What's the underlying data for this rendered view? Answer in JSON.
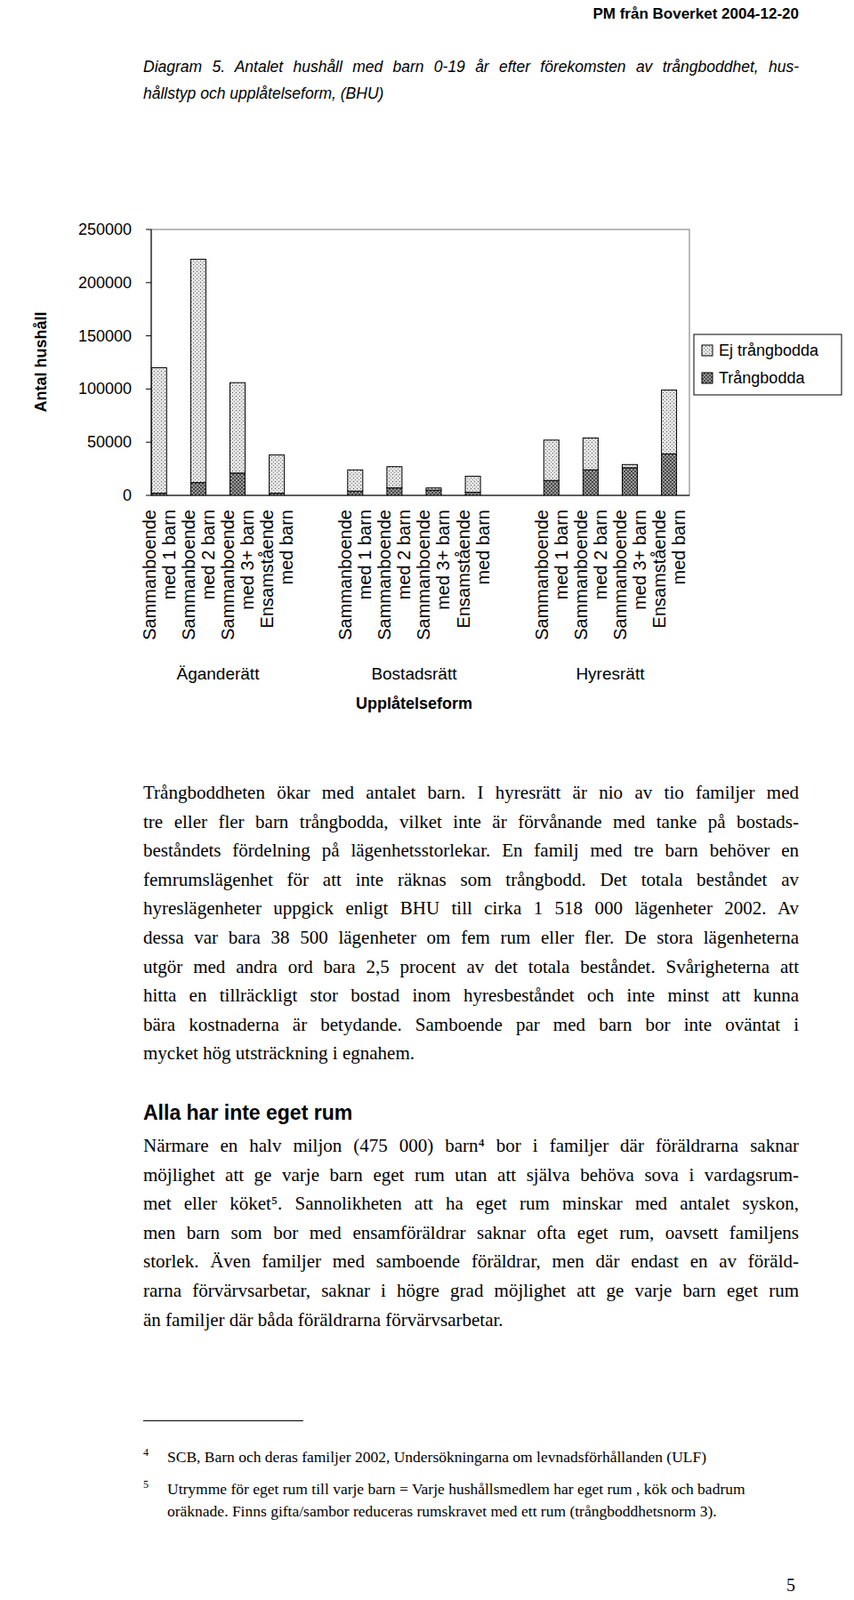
{
  "header": {
    "text": "PM från Boverket 2004-12-20"
  },
  "chart_data": {
    "type": "bar",
    "stacked": true,
    "title": "Diagram 5. Antalet hushåll med barn 0-19 år efter förekomsten av trångboddhet, hus-\nhållstyp och upplåtelseform, (BHU)",
    "x_label": "Upplåtelseform",
    "y_label": "Antal hushåll",
    "categories": [
      "Sammanboende\nmed 1 barn",
      "Sammanboende\nmed 2 barn",
      "Sammanboende\nmed 3+ barn",
      "Ensamstående\nmed barn",
      "Sammanboende\nmed 1 barn",
      "Sammanboende\nmed 2 barn",
      "Sammanboende\nmed 3+ barn",
      "Ensamstående\nmed barn",
      "Sammanboende\nmed 1 barn",
      "Sammanboende\nmed 2 barn",
      "Sammanboende\nmed 3+ barn",
      "Ensamstående\nmed barn"
    ],
    "groups": [
      {
        "label": "Äganderätt",
        "size": 4
      },
      {
        "label": "Bostadsrätt",
        "size": 4
      },
      {
        "label": "Hyresrätt",
        "size": 4
      }
    ],
    "series": [
      {
        "name": "Trångbodda",
        "color": "#9c9c9c",
        "values": [
          2000,
          12000,
          21000,
          2000,
          4000,
          7000,
          5000,
          3000,
          14000,
          24000,
          26000,
          39000
        ]
      },
      {
        "name": "Ej trångbodda",
        "color": "#e4e4e4",
        "values": [
          118000,
          210000,
          85000,
          36000,
          20000,
          20000,
          2000,
          15000,
          38000,
          30000,
          3000,
          60000
        ]
      }
    ],
    "ylim": [
      0,
      250000
    ],
    "yticks": [
      0,
      50000,
      100000,
      150000,
      200000,
      250000
    ],
    "grid": false,
    "legend": "right"
  },
  "body": [
    {
      "type": "paragraph",
      "lines": [
        "Trångboddheten ökar med antalet barn. I hyresrätt är nio av tio familjer med",
        "tre eller fler barn trångbodda, vilket inte är förvånande med tanke på bostads-",
        "beståndets fördelning på lägenhetsstorlekar. En familj med tre barn behöver en",
        "femrumslägenhet för att inte räknas som trångbodd. Det totala beståndet av",
        "hyreslägenheter uppgick enligt BHU till cirka 1 518 000 lägenheter 2002. Av",
        "dessa var bara 38 500 lägenheter om fem rum eller fler. De stora lägenheterna",
        "utgör med andra ord bara 2,5 procent av det totala beståndet. Svårigheterna att",
        "hitta en tillräckligt stor bostad inom hyresbeståndet och inte minst att kunna",
        "bära kostnaderna är betydande. Samboende par med barn bor inte oväntat i",
        "mycket hög utsträckning i egnahem."
      ]
    },
    {
      "type": "heading",
      "text": "Alla har inte eget rum"
    },
    {
      "type": "paragraph",
      "lines": [
        "Närmare en halv miljon (475 000) barn⁴ bor i familjer där föräldrarna saknar",
        "möjlighet att ge varje barn eget rum utan att själva behöva sova i vardagsrum-",
        "met eller köket⁵. Sannolikheten att ha eget rum minskar med antalet syskon,",
        "men barn som bor med ensamföräldrar saknar ofta eget rum, oavsett familjens",
        "storlek. Även familjer med samboende föräldrar, men där endast en av föräld-",
        "rarna förvärvsarbetar, saknar i högre grad möjlighet att ge varje barn eget rum",
        "än familjer där båda föräldrarna förvärvsarbetar."
      ]
    }
  ],
  "footnotes": [
    {
      "marker": "4",
      "lines": [
        "SCB, Barn och deras familjer 2002, Undersökningarna om levnadsförhållanden (ULF)"
      ]
    },
    {
      "marker": "5",
      "lines": [
        "Utrymme för eget rum till varje barn = Varje hushållsmedlem har eget rum , kök och badrum",
        "oräknade. Finns gifta/sambor reduceras rumskravet med ett rum (trångboddhetsnorm 3)."
      ]
    }
  ],
  "page_number": "5"
}
